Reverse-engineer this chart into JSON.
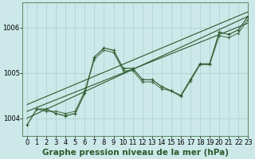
{
  "title": "Graphe pression niveau de la mer (hPa)",
  "background_color": "#cce8e8",
  "grid_color": "#aad0d0",
  "line_color": "#2d5a2d",
  "ylim": [
    1003.6,
    1006.55
  ],
  "xlim": [
    -0.5,
    23
  ],
  "yticks": [
    1004,
    1005,
    1006
  ],
  "xticks": [
    0,
    1,
    2,
    3,
    4,
    5,
    6,
    7,
    8,
    9,
    10,
    11,
    12,
    13,
    14,
    15,
    16,
    17,
    18,
    19,
    20,
    21,
    22,
    23
  ],
  "series1_x": [
    0,
    1,
    2,
    3,
    4,
    5,
    6,
    7,
    8,
    9,
    10,
    11,
    12,
    13,
    14,
    15,
    16,
    17,
    18,
    19,
    20,
    21,
    22,
    23
  ],
  "series1_y": [
    1003.85,
    1004.2,
    1004.2,
    1004.1,
    1004.05,
    1004.1,
    1004.55,
    1005.35,
    1005.55,
    1005.5,
    1005.1,
    1005.1,
    1004.85,
    1004.85,
    1004.7,
    1004.6,
    1004.5,
    1004.85,
    1005.2,
    1005.2,
    1005.9,
    1005.85,
    1005.95,
    1006.25
  ],
  "series2_x": [
    1,
    2,
    3,
    4,
    5,
    6,
    7,
    8,
    9,
    10,
    11,
    12,
    13,
    14,
    15,
    16,
    17,
    18,
    19,
    20,
    21,
    22,
    23
  ],
  "series2_y": [
    1004.2,
    1004.15,
    1004.15,
    1004.1,
    1004.15,
    1004.6,
    1005.3,
    1005.5,
    1005.45,
    1005.05,
    1005.05,
    1004.8,
    1004.8,
    1004.65,
    1004.6,
    1004.48,
    1004.82,
    1005.18,
    1005.18,
    1005.82,
    1005.78,
    1005.88,
    1006.18
  ],
  "trend1_x": [
    0,
    23
  ],
  "trend1_y": [
    1004.0,
    1006.25
  ],
  "trend2_x": [
    0,
    23
  ],
  "trend2_y": [
    1004.15,
    1006.1
  ],
  "trend3_x": [
    0,
    23
  ],
  "trend3_y": [
    1004.3,
    1006.35
  ],
  "tick_fontsize": 6,
  "title_fontsize": 7.5
}
